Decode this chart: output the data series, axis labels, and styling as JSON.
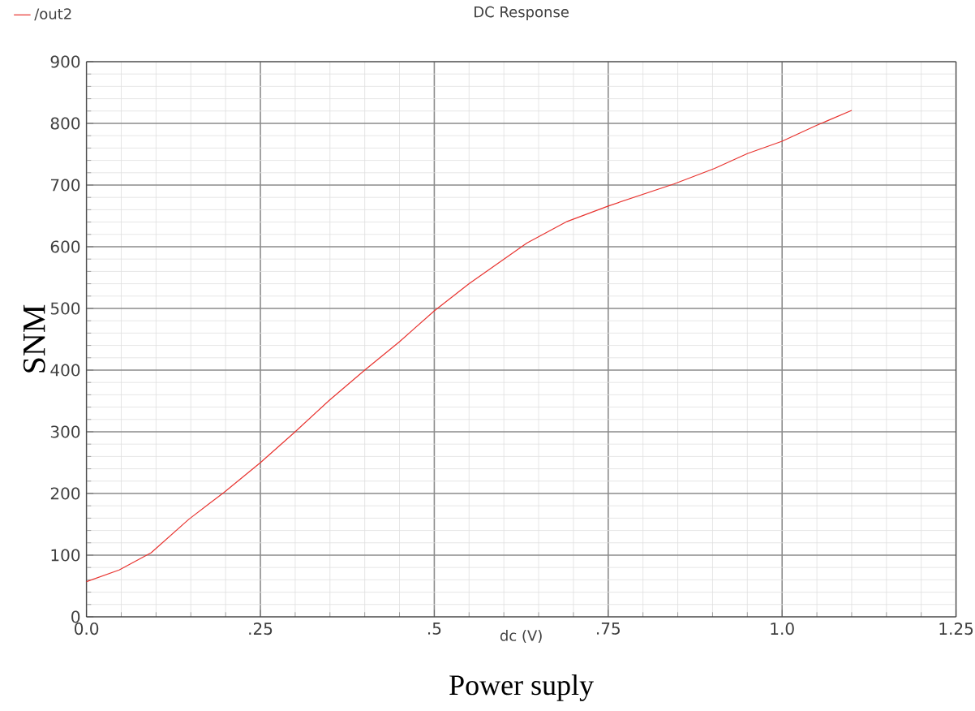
{
  "chart_data": {
    "type": "line",
    "title": "DC Response",
    "xlabel": "dc (V)",
    "ylabel": "SNM",
    "annotations": [
      "Power suply"
    ],
    "xlim": [
      0,
      1.25
    ],
    "ylim": [
      0,
      900
    ],
    "xticks": [
      {
        "value": 0,
        "label": "0.0"
      },
      {
        "value": 0.25,
        "label": ".25"
      },
      {
        "value": 0.5,
        "label": ".5"
      },
      {
        "value": 0.75,
        "label": ".75"
      },
      {
        "value": 1,
        "label": "1.0"
      },
      {
        "value": 1.25,
        "label": "1.25"
      }
    ],
    "yticks": [
      0,
      100,
      200,
      300,
      400,
      500,
      600,
      700,
      800,
      900
    ],
    "grid": true,
    "legend": "top left",
    "marker": "none",
    "line_style": "solid",
    "series": [
      {
        "name": "/out2",
        "color": "#e8332f",
        "x": [
          0,
          0.047,
          0.093,
          0.147,
          0.198,
          0.25,
          0.299,
          0.349,
          0.4,
          0.45,
          0.5,
          0.55,
          0.633,
          0.691,
          0.75,
          0.845,
          0.903,
          0.95,
          1.0,
          1.05,
          1.1
        ],
        "values": [
          57,
          76,
          104,
          158,
          202,
          250,
          299,
          351,
          400,
          446,
          496,
          540,
          606,
          641,
          666,
          702,
          727,
          751,
          771,
          797,
          821
        ]
      }
    ]
  }
}
